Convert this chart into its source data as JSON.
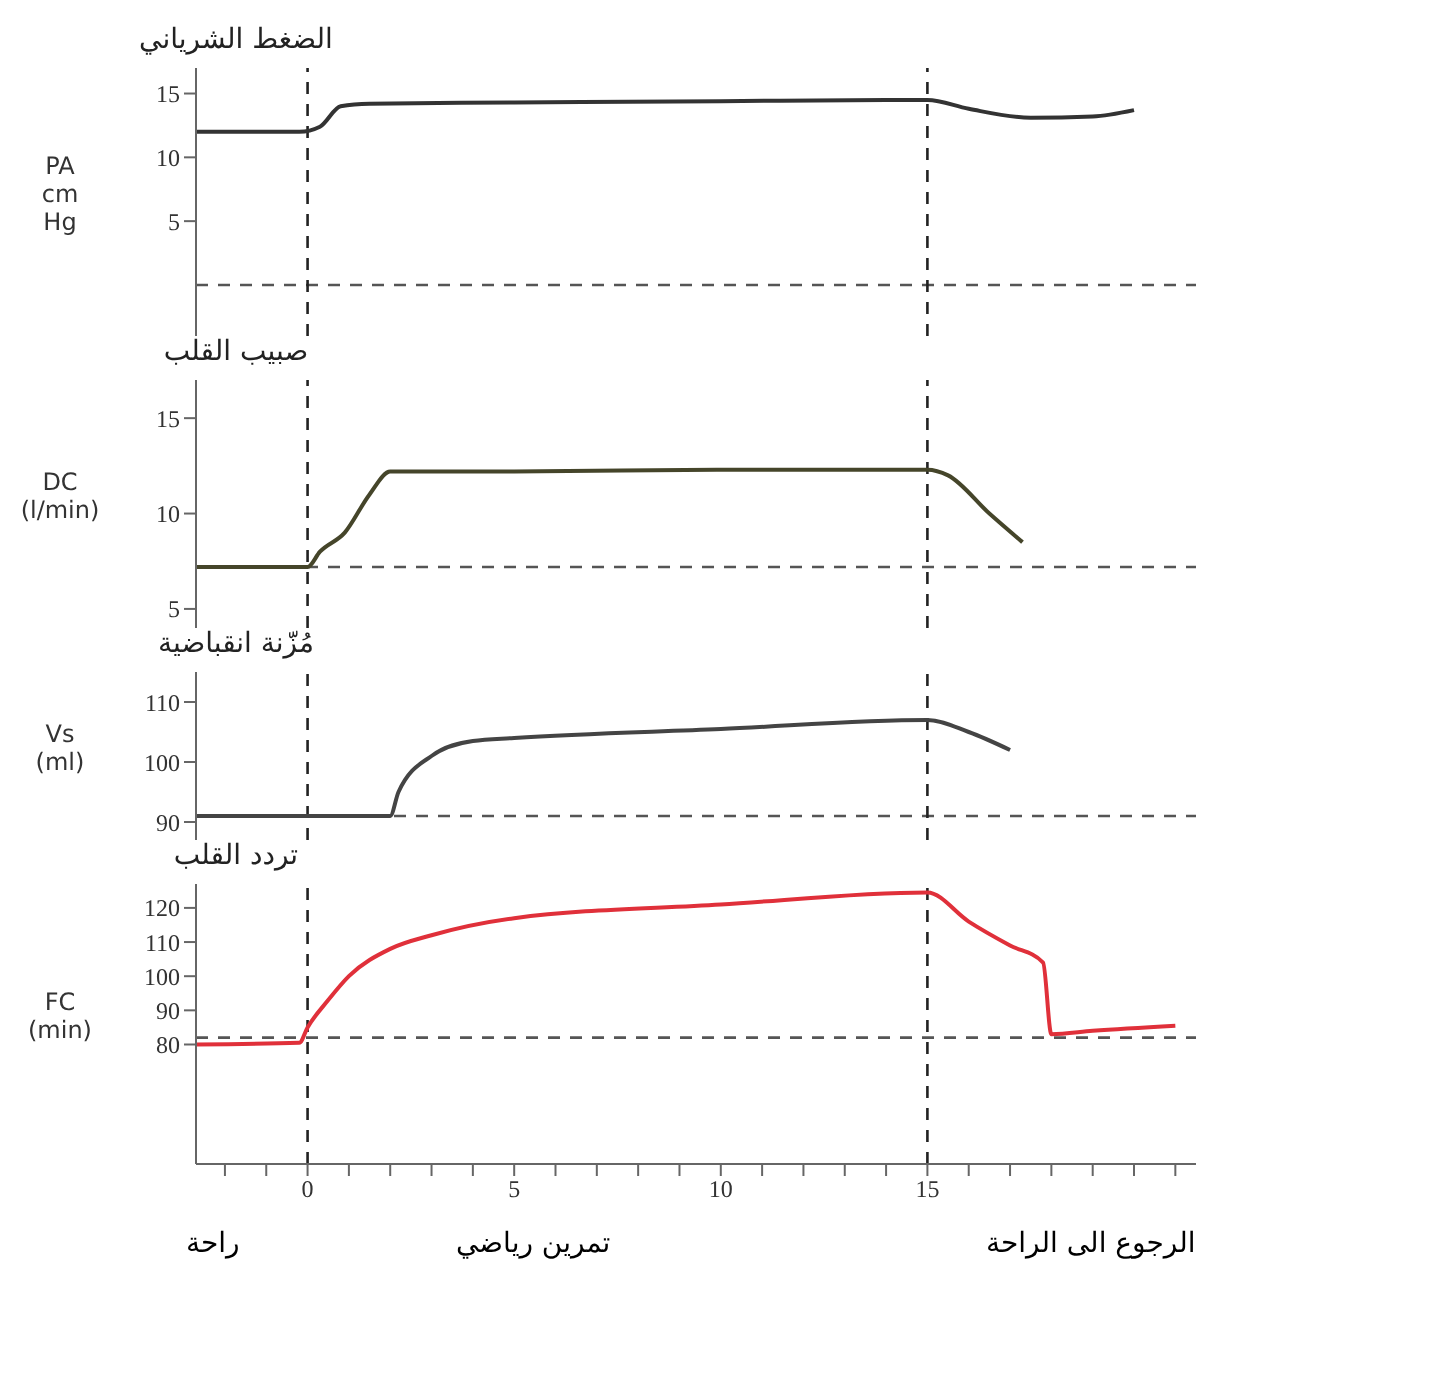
{
  "chart_data": [
    {
      "type": "line",
      "title": "الضغط الشرياني",
      "ylabel": "PA cm Hg",
      "xlim": [
        -2.7,
        21.5
      ],
      "ylim": [
        -4,
        17
      ],
      "yticks": [
        5,
        10,
        15
      ],
      "tick_labels": "y",
      "marker": "none",
      "x": [
        -2.7,
        -0.2,
        0.3,
        0.8,
        1.5,
        5,
        10,
        14,
        15,
        16,
        17.5,
        19,
        20
      ],
      "series": [
        {
          "color": "#333333",
          "values": [
            12,
            12,
            12.4,
            14,
            14.2,
            14.3,
            14.4,
            14.5,
            14.5,
            13.8,
            13.1,
            13.2,
            13.7
          ]
        }
      ],
      "ref_lines": [
        {
          "axis": "y",
          "value": 0,
          "line_style": "dashed"
        },
        {
          "axis": "x",
          "value": 0,
          "line_style": "dashed"
        },
        {
          "axis": "x",
          "value": 15,
          "line_style": "dashed"
        }
      ]
    },
    {
      "type": "line",
      "title": "صبيب القلب",
      "ylabel": "DC (l/min)",
      "xlim": [
        -2.7,
        21.5
      ],
      "ylim": [
        4,
        17
      ],
      "yticks": [
        5,
        10,
        15
      ],
      "tick_labels": "y",
      "marker": "none",
      "x": [
        -2.7,
        0,
        0.3,
        0.9,
        1.5,
        2,
        5,
        10,
        15,
        15.5,
        16.5,
        17.3
      ],
      "series": [
        {
          "color": "#45452a",
          "values": [
            7.2,
            7.2,
            8,
            9,
            11,
            12.2,
            12.2,
            12.3,
            12.3,
            12,
            10,
            8.5
          ]
        }
      ],
      "ref_lines": [
        {
          "axis": "y",
          "value": 7.2,
          "line_style": "dashed"
        },
        {
          "axis": "x",
          "value": 0,
          "line_style": "dashed"
        },
        {
          "axis": "x",
          "value": 15,
          "line_style": "dashed"
        }
      ]
    },
    {
      "type": "line",
      "title": "مُزّنة انقباضية",
      "ylabel": "Vs (ml)",
      "xlim": [
        -2.7,
        21.5
      ],
      "ylim": [
        87,
        115
      ],
      "yticks": [
        90,
        100,
        110
      ],
      "tick_labels": "y",
      "marker": "none",
      "x": [
        -2.7,
        2,
        2.2,
        3,
        4,
        5,
        10,
        15,
        16,
        17
      ],
      "series": [
        {
          "color": "#444444",
          "values": [
            91,
            91,
            95,
            101,
            103.5,
            104,
            105.5,
            107,
            105,
            102
          ]
        }
      ],
      "ref_lines": [
        {
          "axis": "y",
          "value": 91,
          "line_style": "dashed"
        },
        {
          "axis": "x",
          "value": 0,
          "line_style": "dashed"
        },
        {
          "axis": "x",
          "value": 15,
          "line_style": "dashed"
        }
      ]
    },
    {
      "type": "line",
      "title": "تردد القلب",
      "ylabel": "FC (min)",
      "xlim": [
        -2.7,
        21.5
      ],
      "ylim": [
        45,
        127
      ],
      "yticks": [
        80,
        90,
        100,
        110,
        120
      ],
      "marker": "none",
      "xticks": [
        {
          "value": -2,
          "label": null
        },
        {
          "value": -1,
          "label": null
        },
        0,
        {
          "value": 1,
          "label": null
        },
        {
          "value": 2,
          "label": null
        },
        {
          "value": 3,
          "label": null
        },
        {
          "value": 4,
          "label": null
        },
        5,
        {
          "value": 6,
          "label": null
        },
        {
          "value": 7,
          "label": null
        },
        {
          "value": 8,
          "label": null
        },
        {
          "value": 9,
          "label": null
        },
        10,
        {
          "value": 11,
          "label": null
        },
        {
          "value": 12,
          "label": null
        },
        {
          "value": 13,
          "label": null
        },
        {
          "value": 14,
          "label": null
        },
        15,
        {
          "value": 16,
          "label": null
        },
        {
          "value": 17,
          "label": null
        },
        {
          "value": 18,
          "label": null
        },
        {
          "value": 19,
          "label": null
        },
        {
          "value": 20,
          "label": null
        },
        {
          "value": 21,
          "label": null
        }
      ],
      "x": [
        -2.7,
        -0.2,
        0,
        0.5,
        1,
        2,
        3,
        5,
        10,
        15,
        16,
        17,
        17.8,
        18,
        19,
        21
      ],
      "series": [
        {
          "color": "#e0303a",
          "values": [
            80,
            80.5,
            85,
            93,
            100,
            108,
            112,
            117,
            121,
            124.5,
            116,
            109,
            104,
            83,
            84,
            85.5
          ]
        }
      ],
      "ref_lines": [
        {
          "axis": "y",
          "value": 82,
          "line_style": "dashed"
        },
        {
          "axis": "x",
          "value": 0,
          "line_style": "dashed"
        },
        {
          "axis": "x",
          "value": 15,
          "line_style": "dashed"
        }
      ],
      "annotations": [
        "راحة",
        "تمرين رياضي",
        "الرجوع الى الراحة"
      ]
    }
  ]
}
